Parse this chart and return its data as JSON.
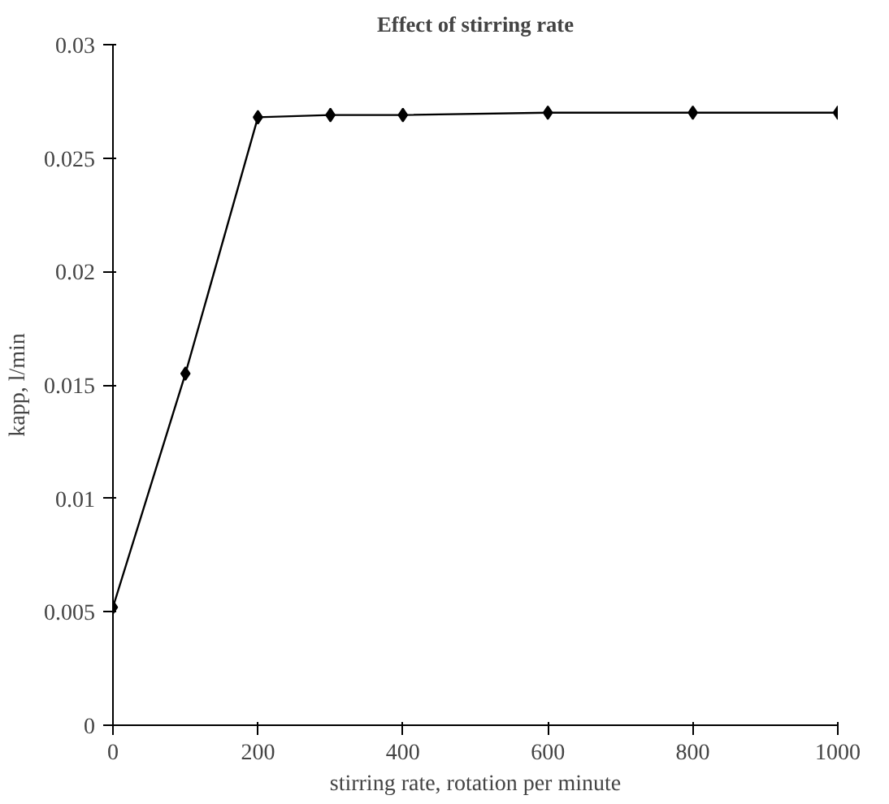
{
  "chart_data": {
    "type": "line",
    "title": "Effect of stirring rate",
    "xlabel": "stirring rate, rotation per minute",
    "ylabel": "kapp, l/min",
    "x": [
      0,
      100,
      200,
      300,
      400,
      600,
      800,
      1000
    ],
    "series": [
      {
        "color": "#000000",
        "values": [
          0.0052,
          0.0155,
          0.0268,
          0.0269,
          0.0269,
          0.027,
          0.027,
          0.027
        ]
      }
    ],
    "xlim": [
      0,
      1000
    ],
    "xticks": [
      0,
      200,
      400,
      600,
      800,
      1000
    ],
    "ylim": [
      0,
      0.03
    ],
    "yticks": [
      0,
      0.005,
      0.01,
      0.015,
      0.02,
      0.025,
      0.03
    ],
    "marker": "diamond",
    "line_style": "solid"
  }
}
